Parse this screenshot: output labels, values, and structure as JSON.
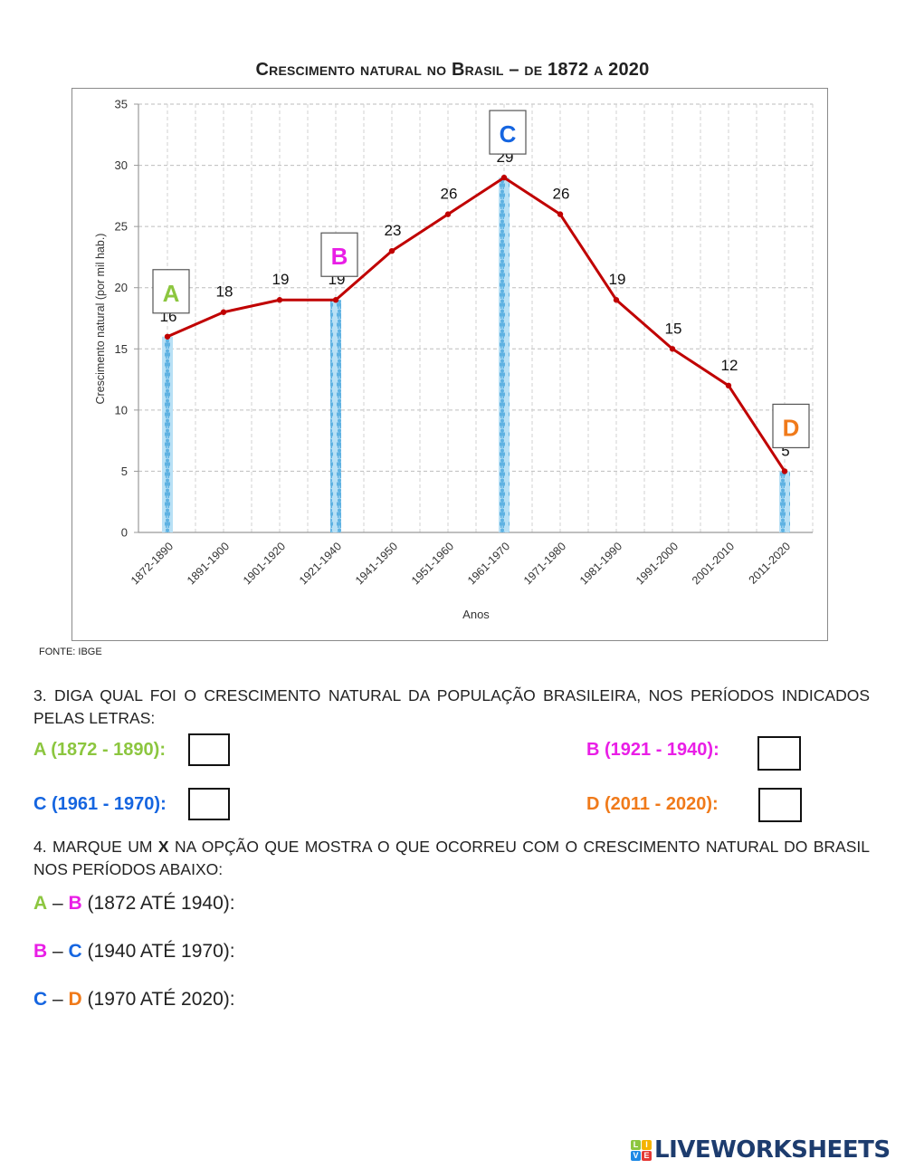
{
  "chart_title": "Crescimento natural no Brasil – de 1872 a 2020",
  "source": "FONTE: IBGE",
  "colors": {
    "line": "#c00000",
    "bar": "#7ec4ea",
    "A": "#8cc63f",
    "B": "#e91ee6",
    "C": "#1565e0",
    "D": "#f07a1a",
    "grid": "#bdbdbd"
  },
  "chart_data": {
    "type": "line",
    "title": "Crescimento natural no Brasil – de 1872 a 2020",
    "xlabel": "Anos",
    "ylabel": "Crescimento natural (por mil hab.)",
    "ylim": [
      0,
      35
    ],
    "yticks": [
      0,
      5,
      10,
      15,
      20,
      25,
      30,
      35
    ],
    "grid": true,
    "categories": [
      "1872-1890",
      "1891-1900",
      "1901-1920",
      "1921-1940",
      "1941-1950",
      "1951-1960",
      "1961-1970",
      "1971-1980",
      "1981-1990",
      "1991-2000",
      "2001-2010",
      "2011-2020"
    ],
    "series": [
      {
        "name": "Crescimento natural",
        "values": [
          16,
          18,
          19,
          19,
          23,
          26,
          29,
          26,
          19,
          15,
          12,
          5
        ]
      }
    ],
    "highlight_bars": [
      {
        "label": "A",
        "category": "1872-1890",
        "value": 16
      },
      {
        "label": "B",
        "category": "1921-1940",
        "value": 19
      },
      {
        "label": "C",
        "category": "1961-1970",
        "value": 29
      },
      {
        "label": "D",
        "category": "2011-2020",
        "value": 5
      }
    ],
    "source": "FONTE: IBGE"
  },
  "question3": {
    "text": "3. DIGA QUAL FOI O CRESCIMENTO NATURAL DA POPULAÇÃO BRASILEIRA, NOS PERÍODOS INDICADOS PELAS LETRAS:",
    "answers": [
      {
        "label": "A (1872 - 1890):",
        "value": ""
      },
      {
        "label": "B (1921 - 1940):",
        "value": ""
      },
      {
        "label": "C (1961 - 1970):",
        "value": ""
      },
      {
        "label": "D (2011 - 2020):",
        "value": ""
      }
    ]
  },
  "question4": {
    "text_pre": "4. MARQUE UM ",
    "text_x": "X",
    "text_post": " NA OPÇÃO QUE MOSTRA O QUE OCORREU COM O CRESCIMENTO NATURAL DO BRASIL NOS PERÍODOS ABAIXO:",
    "options": [
      {
        "l1": "A",
        "dash": " – ",
        "l2": "B",
        "rest": " (1872 ATÉ 1940):"
      },
      {
        "l1": "B",
        "dash": " – ",
        "l2": "C",
        "rest": " (1940 ATÉ 1970):"
      },
      {
        "l1": "C",
        "dash": " – ",
        "l2": "D",
        "rest": " (1970 ATÉ 2020):"
      }
    ]
  },
  "logo": {
    "tiles": [
      "L",
      "I",
      "V",
      "E"
    ],
    "text": "LIVEWORKSHEETS"
  }
}
